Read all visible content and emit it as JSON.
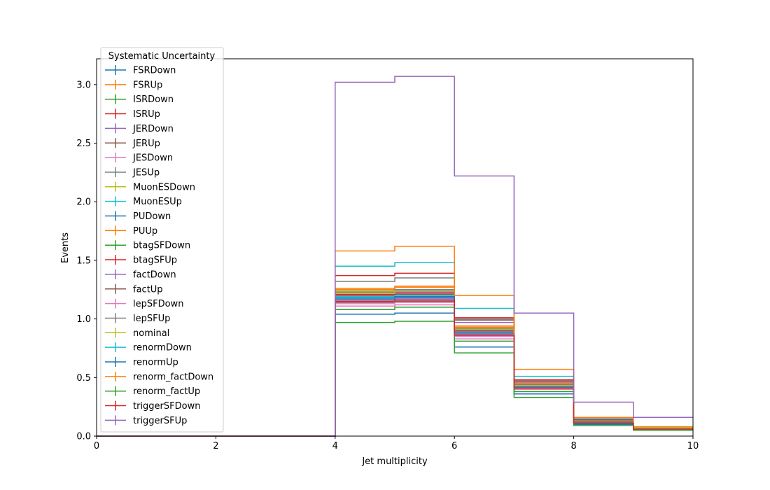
{
  "chart_data": {
    "type": "line",
    "xlabel": "Jet multiplicity",
    "ylabel": "Events",
    "xlim": [
      0,
      10
    ],
    "ylim": [
      0,
      3.22
    ],
    "xticks": [
      "0",
      "2",
      "4",
      "6",
      "8",
      "10"
    ],
    "yticks": [
      "0.0",
      "0.5",
      "1.0",
      "1.5",
      "2.0",
      "2.5",
      "3.0"
    ],
    "grid": false,
    "legend": {
      "title": "Systematic Uncertainty",
      "placement": "upper-left"
    },
    "bin_edges": [
      0,
      1,
      2,
      3,
      4,
      5,
      6,
      7,
      8,
      9,
      10
    ],
    "series": [
      {
        "name": "FSRDown",
        "color": "#1f77b4",
        "values": [
          0,
          0,
          0,
          0,
          1.18,
          1.18,
          0.89,
          0.43,
          0.12,
          0.07
        ]
      },
      {
        "name": "FSRUp",
        "color": "#ff7f0e",
        "values": [
          0,
          0,
          0,
          0,
          1.25,
          1.27,
          0.93,
          0.45,
          0.13,
          0.07
        ]
      },
      {
        "name": "ISRDown",
        "color": "#2ca02c",
        "values": [
          0,
          0,
          0,
          0,
          1.23,
          1.24,
          0.91,
          0.44,
          0.12,
          0.07
        ]
      },
      {
        "name": "ISRUp",
        "color": "#d62728",
        "values": [
          0,
          0,
          0,
          0,
          1.21,
          1.22,
          0.9,
          0.44,
          0.12,
          0.07
        ]
      },
      {
        "name": "JERDown",
        "color": "#9467bd",
        "values": [
          0,
          0,
          0,
          0,
          1.22,
          1.23,
          0.97,
          0.46,
          0.13,
          0.07
        ]
      },
      {
        "name": "JERUp",
        "color": "#8c564b",
        "values": [
          0,
          0,
          0,
          0,
          1.2,
          1.21,
          0.99,
          0.47,
          0.13,
          0.07
        ]
      },
      {
        "name": "JESDown",
        "color": "#e377c2",
        "values": [
          0,
          0,
          0,
          0,
          1.11,
          1.12,
          0.83,
          0.38,
          0.11,
          0.06
        ]
      },
      {
        "name": "JESUp",
        "color": "#7f7f7f",
        "values": [
          0,
          0,
          0,
          0,
          1.32,
          1.35,
          1.0,
          0.48,
          0.14,
          0.07
        ]
      },
      {
        "name": "MuonESDown",
        "color": "#bcbd22",
        "values": [
          0,
          0,
          0,
          0,
          1.24,
          1.25,
          0.92,
          0.44,
          0.12,
          0.07
        ]
      },
      {
        "name": "MuonESUp",
        "color": "#17becf",
        "values": [
          0,
          0,
          0,
          0,
          1.45,
          1.48,
          1.09,
          0.51,
          0.15,
          0.08
        ]
      },
      {
        "name": "PUDown",
        "color": "#1f77b4",
        "values": [
          0,
          0,
          0,
          0,
          1.04,
          1.05,
          0.76,
          0.36,
          0.1,
          0.06
        ]
      },
      {
        "name": "PUUp",
        "color": "#ff7f0e",
        "values": [
          0,
          0,
          0,
          0,
          1.26,
          1.28,
          0.94,
          0.45,
          0.13,
          0.07
        ]
      },
      {
        "name": "btagSFDown",
        "color": "#2ca02c",
        "values": [
          0,
          0,
          0,
          0,
          1.08,
          1.1,
          0.81,
          0.38,
          0.11,
          0.06
        ]
      },
      {
        "name": "btagSFUp",
        "color": "#d62728",
        "values": [
          0,
          0,
          0,
          0,
          1.37,
          1.39,
          1.01,
          0.48,
          0.14,
          0.07
        ]
      },
      {
        "name": "factDown",
        "color": "#9467bd",
        "values": [
          0,
          0,
          0,
          0,
          1.16,
          1.17,
          0.87,
          0.41,
          0.12,
          0.06
        ]
      },
      {
        "name": "factUp",
        "color": "#8c564b",
        "values": [
          0,
          0,
          0,
          0,
          1.14,
          1.15,
          0.86,
          0.4,
          0.11,
          0.06
        ]
      },
      {
        "name": "lepSFDown",
        "color": "#e377c2",
        "values": [
          0,
          0,
          0,
          0,
          1.13,
          1.14,
          0.85,
          0.4,
          0.11,
          0.06
        ]
      },
      {
        "name": "lepSFUp",
        "color": "#7f7f7f",
        "values": [
          0,
          0,
          0,
          0,
          1.23,
          1.25,
          0.92,
          0.44,
          0.12,
          0.07
        ]
      },
      {
        "name": "nominal",
        "color": "#bcbd22",
        "values": [
          0,
          0,
          0,
          0,
          1.22,
          1.24,
          0.91,
          0.43,
          0.12,
          0.07
        ]
      },
      {
        "name": "renormDown",
        "color": "#17becf",
        "values": [
          0,
          0,
          0,
          0,
          1.19,
          1.2,
          0.88,
          0.42,
          0.12,
          0.06
        ]
      },
      {
        "name": "renormUp",
        "color": "#1f77b4",
        "values": [
          0,
          0,
          0,
          0,
          1.17,
          1.19,
          0.88,
          0.42,
          0.12,
          0.06
        ]
      },
      {
        "name": "renorm_factDown",
        "color": "#ff7f0e",
        "values": [
          0,
          0,
          0,
          0,
          1.58,
          1.62,
          1.2,
          0.57,
          0.16,
          0.08
        ]
      },
      {
        "name": "renorm_factUp",
        "color": "#2ca02c",
        "values": [
          0,
          0,
          0,
          0,
          0.97,
          0.98,
          0.71,
          0.33,
          0.09,
          0.05
        ]
      },
      {
        "name": "triggerSFDown",
        "color": "#d62728",
        "values": [
          0,
          0,
          0,
          0,
          1.15,
          1.16,
          0.86,
          0.41,
          0.11,
          0.06
        ]
      },
      {
        "name": "triggerSFUp",
        "color": "#9467bd",
        "values": [
          0,
          0,
          0,
          0,
          3.02,
          3.07,
          2.22,
          1.05,
          0.29,
          0.16
        ]
      }
    ]
  }
}
